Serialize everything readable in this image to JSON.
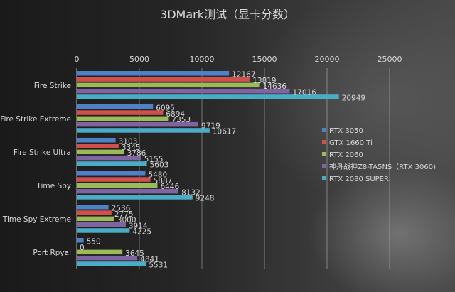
{
  "chart_data": {
    "type": "bar",
    "orientation": "horizontal",
    "title": "3DMark测试（显卡分数）",
    "categories": [
      "Fire Strike",
      "Fire Strike Extreme",
      "Fire Strike Ultra",
      "Time Spy",
      "Time Spy Extreme",
      "Port Rpyal"
    ],
    "xlim": [
      0,
      25000
    ],
    "xticks": [
      0,
      5000,
      10000,
      15000,
      20000,
      25000
    ],
    "grid": true,
    "legend_position": "right",
    "series": [
      {
        "name": "RTX 3050",
        "color": "#4f81c7",
        "values": [
          12167,
          6095,
          3103,
          5480,
          2536,
          550
        ]
      },
      {
        "name": "GTX 1660 Ti",
        "color": "#d0504d",
        "values": [
          13819,
          6894,
          3345,
          5887,
          2775,
          0
        ]
      },
      {
        "name": "RTX 2060",
        "color": "#9bbb59",
        "values": [
          14636,
          7353,
          3786,
          6446,
          3000,
          3645
        ]
      },
      {
        "name": "神舟战神Z8-TA5NS（RTX 3060)",
        "color": "#8064a2",
        "values": [
          17016,
          9719,
          5155,
          8132,
          3914,
          4841
        ]
      },
      {
        "name": "RTX 2080 SUPER",
        "color": "#4bacc6",
        "values": [
          20949,
          10617,
          5603,
          9248,
          4225,
          5531
        ]
      }
    ]
  }
}
